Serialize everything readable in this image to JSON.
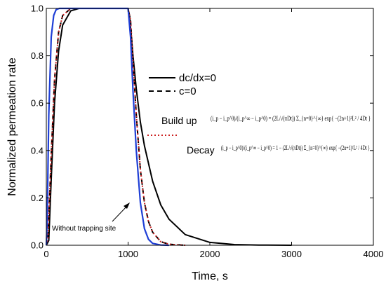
{
  "chart_data": {
    "type": "line",
    "xlabel": "Time, s",
    "ylabel": "Normalized permeation rate",
    "xlim": [
      0,
      4000
    ],
    "ylim": [
      0,
      1.0
    ],
    "xticks": [
      0,
      1000,
      2000,
      3000,
      4000
    ],
    "xtick_labels": [
      "0",
      "1000",
      "2000",
      "3000",
      "4000"
    ],
    "yticks": [
      0.0,
      0.2,
      0.4,
      0.6,
      0.8,
      1.0
    ],
    "ytick_labels": [
      "0.0",
      "0.2",
      "0.4",
      "0.6",
      "0.8",
      "1.0"
    ],
    "grid": false,
    "legend_position": "upper-center",
    "legend": [
      {
        "label": "dc/dx=0",
        "color": "#000000",
        "dash": "solid"
      },
      {
        "label": "c=0",
        "color": "#000000",
        "dash": "dashed"
      }
    ],
    "series": [
      {
        "name": "dc/dx=0",
        "color": "#000000",
        "dash": "solid",
        "x": [
          0,
          30,
          60,
          100,
          150,
          200,
          300,
          400,
          600,
          900,
          1000,
          1020,
          1060,
          1100,
          1150,
          1200,
          1300,
          1400,
          1500,
          1700,
          2000,
          2300,
          2600,
          3000
        ],
        "y": [
          0,
          0.02,
          0.28,
          0.6,
          0.82,
          0.93,
          0.99,
          1.0,
          1.0,
          1.0,
          1.0,
          0.96,
          0.8,
          0.66,
          0.52,
          0.42,
          0.27,
          0.17,
          0.11,
          0.045,
          0.012,
          0.003,
          0.001,
          0
        ]
      },
      {
        "name": "c=0",
        "color": "#000000",
        "dash": "dashed",
        "x": [
          0,
          20,
          60,
          100,
          150,
          200,
          300,
          400,
          600,
          900,
          1000,
          1030,
          1060,
          1100,
          1150,
          1200,
          1250,
          1300,
          1400,
          1500,
          1700
        ],
        "y": [
          0,
          0.03,
          0.38,
          0.7,
          0.9,
          0.97,
          1.0,
          1.0,
          1.0,
          1.0,
          1.0,
          0.95,
          0.78,
          0.55,
          0.32,
          0.18,
          0.1,
          0.055,
          0.015,
          0.004,
          0
        ]
      },
      {
        "name": "",
        "color": "#cc2222",
        "dash": "dotted",
        "x": [
          0,
          20,
          60,
          100,
          150,
          200,
          300,
          400,
          600,
          900,
          1000,
          1030,
          1060,
          1100,
          1150,
          1200,
          1250,
          1300,
          1400,
          1500,
          1700
        ],
        "y": [
          0,
          0.03,
          0.38,
          0.7,
          0.9,
          0.97,
          1.0,
          1.0,
          1.0,
          1.0,
          1.0,
          0.95,
          0.78,
          0.55,
          0.32,
          0.18,
          0.1,
          0.055,
          0.015,
          0.004,
          0
        ]
      },
      {
        "name": "",
        "color": "#1f3fd6",
        "dash": "solid",
        "x": [
          0,
          10,
          30,
          60,
          90,
          120,
          160,
          200,
          300,
          900,
          1000,
          1030,
          1060,
          1100,
          1150,
          1200,
          1250,
          1300,
          1400,
          1500
        ],
        "y": [
          0,
          0.1,
          0.55,
          0.88,
          0.97,
          0.995,
          1.0,
          1.0,
          1.0,
          1.0,
          1.0,
          0.88,
          0.65,
          0.4,
          0.18,
          0.07,
          0.025,
          0.008,
          0.001,
          0
        ]
      }
    ],
    "annotations": {
      "buildup_label": "Build up",
      "buildup_formula": "(i_p − i_p^0)/(i_p^∞ − i_p^0) = (2L/√(πDt)) Σ_{n=0}^{∞} exp{ −(2n+1)²L² / 4Dt }",
      "decay_label": "Decay",
      "decay_formula": "(i_p − i_p^0)/(i_p^∞ − i_p^0) = 1 − (2L/√(πDt)) Σ_{n=0}^{∞} exp{ −(2n+1)²L² / 4Dt }",
      "trap_label": "Without trapping site"
    }
  }
}
